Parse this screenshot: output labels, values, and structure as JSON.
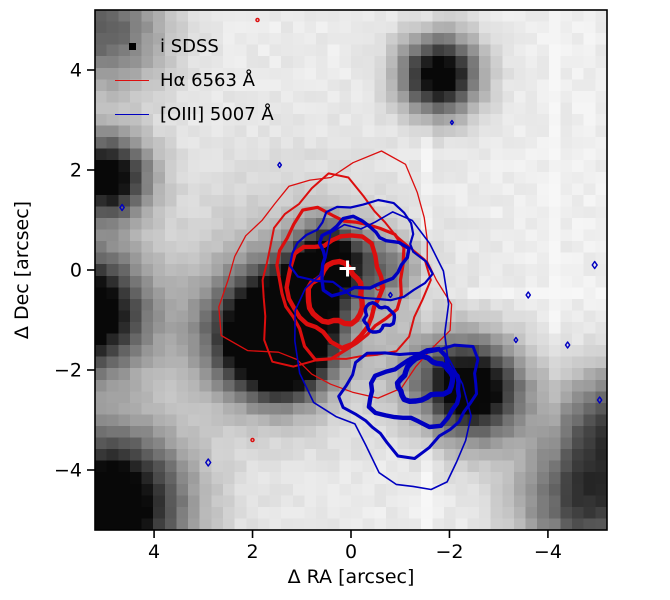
{
  "chart_data": {
    "type": "contour",
    "title": "",
    "description": "Grayscale SDSS i-band image with Halpha and [OIII] emission-line contour overlays; white plus marks the image center",
    "xlabel": "Δ RA [arcsec]",
    "ylabel": "Δ Dec [arcsec]",
    "xlim": [
      5.2,
      -5.2
    ],
    "ylim": [
      -5.2,
      5.2
    ],
    "grid": false,
    "legend_position": "upper left",
    "x_ticks": [
      {
        "label": "4",
        "v": 4
      },
      {
        "label": "2",
        "v": 2
      },
      {
        "label": "0",
        "v": 0
      },
      {
        "label": "−2",
        "v": -2
      },
      {
        "label": "−4",
        "v": -4
      }
    ],
    "y_ticks": [
      {
        "label": "−4",
        "v": -4
      },
      {
        "label": "−2",
        "v": -2
      },
      {
        "label": "0",
        "v": 0
      },
      {
        "label": "2",
        "v": 2
      },
      {
        "label": "4",
        "v": 4
      }
    ],
    "legend": [
      {
        "label": "i SDSS",
        "marker": "square",
        "color": "#000000"
      },
      {
        "label": "Hα 6563 Å",
        "marker": "line",
        "color": "#dc0e0e"
      },
      {
        "label": "[OIII] 5007 Å",
        "marker": "line",
        "color": "#0000c0"
      }
    ],
    "colors": {
      "halpha": "#dc0e0e",
      "oiii": "#0000c0",
      "background_base": "#ececec",
      "marker": "#ffffff",
      "axes": "#000000"
    },
    "center_marker": {
      "symbol": "+",
      "ra": 0.07,
      "dec": 0.03,
      "color": "#ffffff"
    },
    "image_sources": [
      {
        "ra": 0.45,
        "dec": 0.18,
        "sigma": 0.5,
        "amp": 0.95
      },
      {
        "ra": 1.0,
        "dec": -0.8,
        "sigma": 0.55,
        "amp": 0.7
      },
      {
        "ra": 1.75,
        "dec": -1.3,
        "sigma": 0.8,
        "amp": 1.1
      },
      {
        "ra": 1.3,
        "dec": -1.75,
        "sigma": 0.55,
        "amp": 0.7
      },
      {
        "ra": -1.8,
        "dec": 3.9,
        "sigma": 0.55,
        "amp": 1.05
      },
      {
        "ra": 4.95,
        "dec": 1.85,
        "sigma": 0.6,
        "amp": 1.0
      },
      {
        "ra": 5.4,
        "dec": -0.85,
        "sigma": 0.85,
        "amp": 1.15
      },
      {
        "ra": 4.9,
        "dec": -4.7,
        "sigma": 1.05,
        "amp": 1.15
      },
      {
        "ra": -2.5,
        "dec": -2.4,
        "sigma": 0.7,
        "amp": 1.05
      },
      {
        "ra": -4.8,
        "dec": -4.6,
        "sigma": 0.95,
        "amp": 0.7
      },
      {
        "ra": 5.0,
        "dec": 4.8,
        "sigma": 0.85,
        "amp": 0.55
      },
      {
        "ra": -5.4,
        "dec": -3.0,
        "sigma": 0.8,
        "amp": 0.55
      },
      {
        "ra": -0.75,
        "dec": 0.0,
        "sigma": 0.45,
        "amp": 0.35
      },
      {
        "ra": -1.5,
        "dec": -2.0,
        "sigma": 0.6,
        "amp": 0.2
      },
      {
        "ra": 1.2,
        "dec": -0.6,
        "sigma": 1.7,
        "amp": 0.22
      }
    ],
    "halpha_contours": [
      {
        "cx": 0.2,
        "cy": -0.2,
        "rx": 2.2,
        "ry": 2.25,
        "rot": 0,
        "wiggle": 0.24,
        "lw": 1.3
      },
      {
        "cx": 0.25,
        "cy": -0.2,
        "rx": 1.65,
        "ry": 1.8,
        "rot": 0,
        "wiggle": 0.22,
        "lw": 2.0
      },
      {
        "cx": 0.25,
        "cy": -0.2,
        "rx": 1.27,
        "ry": 1.4,
        "rot": 0,
        "wiggle": 0.2,
        "lw": 3.2
      },
      {
        "cx": 0.3,
        "cy": -0.35,
        "rx": 0.95,
        "ry": 1.05,
        "rot": 0,
        "wiggle": 0.18,
        "lw": 4.4
      },
      {
        "cx": 0.3,
        "cy": -0.5,
        "rx": 0.55,
        "ry": 0.6,
        "rot": 0,
        "wiggle": 0.18,
        "lw": 5.4
      }
    ],
    "oiii_contours": [
      {
        "cx": -0.7,
        "cy": -1.6,
        "rx": 1.55,
        "ry": 2.75,
        "rot": -15,
        "wiggle": 0.24,
        "lw": 1.6
      },
      {
        "cx": -0.25,
        "cy": 0.35,
        "rx": 1.3,
        "ry": 0.95,
        "rot": 8,
        "wiggle": 0.26,
        "lw": 2.2
      },
      {
        "cx": -0.15,
        "cy": 0.25,
        "rx": 0.85,
        "ry": 0.7,
        "rot": 0,
        "wiggle": 0.3,
        "lw": 3.4
      },
      {
        "cx": -1.25,
        "cy": -2.5,
        "rx": 1.35,
        "ry": 1.0,
        "rot": -10,
        "wiggle": 0.28,
        "lw": 3.0
      },
      {
        "cx": -1.35,
        "cy": -2.4,
        "rx": 0.92,
        "ry": 0.68,
        "rot": -10,
        "wiggle": 0.25,
        "lw": 4.4
      },
      {
        "cx": -1.5,
        "cy": -2.2,
        "rx": 0.55,
        "ry": 0.4,
        "rot": -15,
        "wiggle": 0.22,
        "lw": 5.4
      },
      {
        "cx": -0.55,
        "cy": -0.95,
        "rx": 0.3,
        "ry": 0.26,
        "rot": 0,
        "wiggle": 0.3,
        "lw": 3.4
      }
    ],
    "halpha_points": [
      {
        "ra": -0.55,
        "dec": -0.35,
        "size": 5
      },
      {
        "ra": 1.9,
        "dec": 5.0,
        "size": 3
      },
      {
        "ra": 2.0,
        "dec": -3.4,
        "size": 3
      }
    ],
    "oiii_points": [
      {
        "ra": 4.65,
        "dec": 1.25,
        "size": 6
      },
      {
        "ra": -2.05,
        "dec": 2.95,
        "size": 4
      },
      {
        "ra": -4.95,
        "dec": 0.1,
        "size": 7
      },
      {
        "ra": -3.6,
        "dec": -0.5,
        "size": 6
      },
      {
        "ra": -4.4,
        "dec": -1.5,
        "size": 6
      },
      {
        "ra": -3.35,
        "dec": -1.4,
        "size": 5
      },
      {
        "ra": 2.9,
        "dec": -3.85,
        "size": 7
      },
      {
        "ra": -0.8,
        "dec": -0.5,
        "size": 5
      },
      {
        "ra": 1.45,
        "dec": 2.1,
        "size": 5
      },
      {
        "ra": -5.05,
        "dec": -2.6,
        "size": 6
      }
    ]
  }
}
